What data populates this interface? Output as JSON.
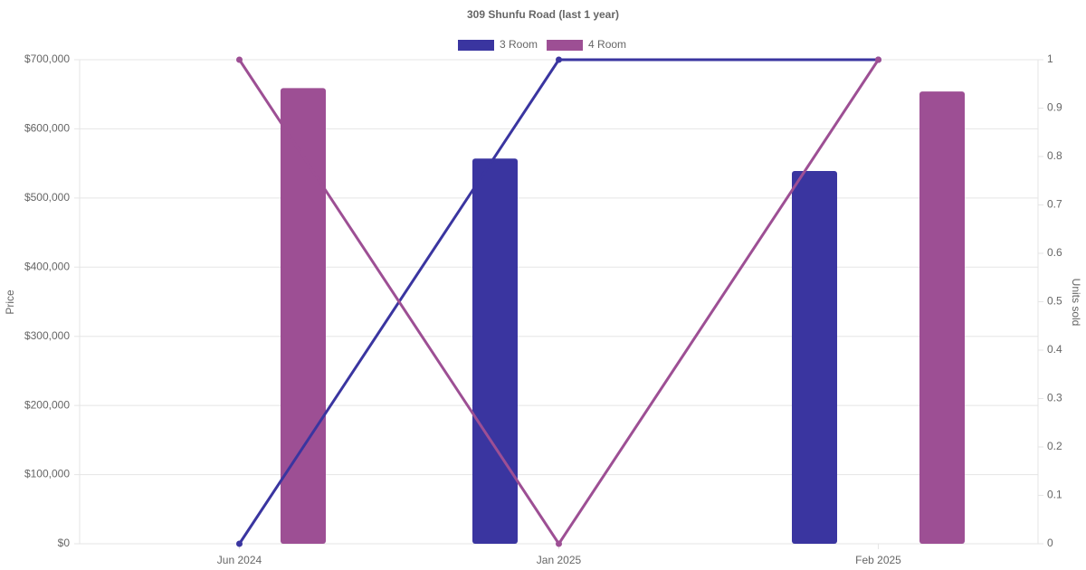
{
  "chart_data": {
    "type": "bar",
    "title": "309 Shunfu Road (last 1 year)",
    "categories": [
      "Jun 2024",
      "Jan 2025",
      "Feb 2025"
    ],
    "series": [
      {
        "name": "3 Room",
        "color": "#3a35a0",
        "values": [
          null,
          557000,
          539000
        ],
        "units": [
          0,
          1,
          1
        ]
      },
      {
        "name": "4 Room",
        "color": "#9d4f94",
        "values": [
          659000,
          null,
          654000
        ],
        "units": [
          1,
          0,
          1
        ]
      }
    ],
    "ylabel": "Price",
    "y2label": "Units sold",
    "ylim": [
      0,
      700000
    ],
    "yticks": [
      {
        "value": 0,
        "label": "$0"
      },
      {
        "value": 100000,
        "label": "$100,000"
      },
      {
        "value": 200000,
        "label": "$200,000"
      },
      {
        "value": 300000,
        "label": "$300,000"
      },
      {
        "value": 400000,
        "label": "$400,000"
      },
      {
        "value": 500000,
        "label": "$500,000"
      },
      {
        "value": 600000,
        "label": "$600,000"
      },
      {
        "value": 700000,
        "label": "$700,000"
      }
    ],
    "y2lim": [
      0,
      1
    ],
    "y2ticks": [
      0,
      0.1,
      0.2,
      0.3,
      0.4,
      0.5,
      0.6,
      0.7,
      0.8,
      0.9,
      1
    ],
    "grid": true
  }
}
